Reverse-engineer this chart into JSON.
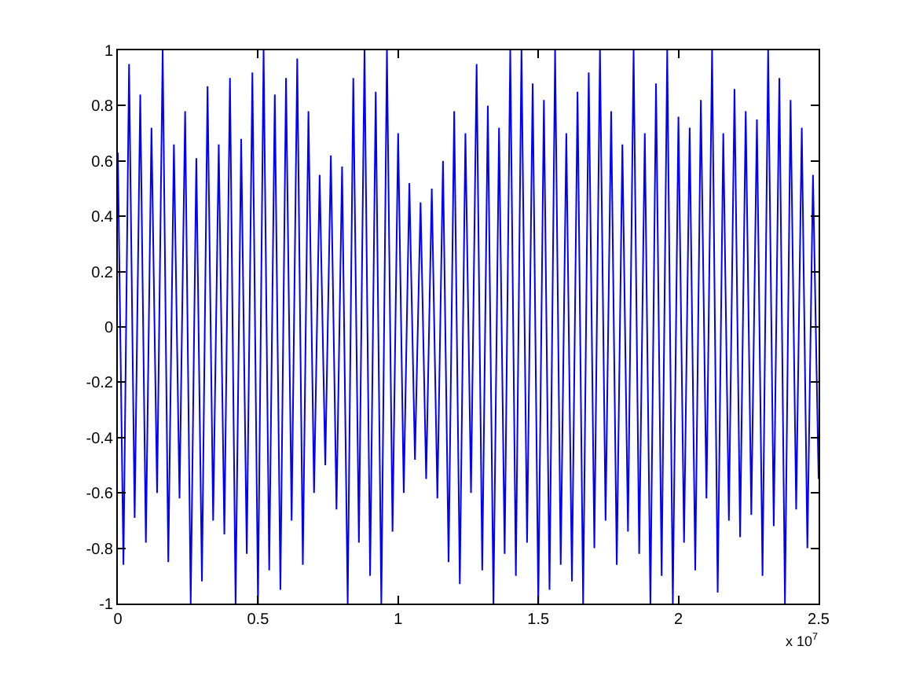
{
  "chart_data": {
    "type": "line",
    "color": "#0000ff",
    "x": [
      0,
      0.02,
      0.04,
      0.06,
      0.08,
      0.1,
      0.12,
      0.14,
      0.16,
      0.18,
      0.2,
      0.22,
      0.24,
      0.26,
      0.28,
      0.3,
      0.32,
      0.34,
      0.36,
      0.38,
      0.4,
      0.42,
      0.44,
      0.46,
      0.48,
      0.5,
      0.52,
      0.54,
      0.56,
      0.58,
      0.6,
      0.62,
      0.64,
      0.66,
      0.68,
      0.7,
      0.72,
      0.74,
      0.76,
      0.78,
      0.8,
      0.82,
      0.84,
      0.86,
      0.88,
      0.9,
      0.92,
      0.94,
      0.96,
      0.98,
      1,
      1.02,
      1.04,
      1.06,
      1.08,
      1.1,
      1.12,
      1.14,
      1.16,
      1.18,
      1.2,
      1.22,
      1.24,
      1.26,
      1.28,
      1.3,
      1.32,
      1.34,
      1.36,
      1.38,
      1.4,
      1.42,
      1.44,
      1.46,
      1.48,
      1.5,
      1.52,
      1.54,
      1.56,
      1.58,
      1.6,
      1.62,
      1.64,
      1.66,
      1.68,
      1.7,
      1.72,
      1.74,
      1.76,
      1.78,
      1.8,
      1.82,
      1.84,
      1.86,
      1.88,
      1.9,
      1.92,
      1.94,
      1.96,
      1.98,
      2,
      2.02,
      2.04,
      2.06,
      2.08,
      2.1,
      2.12,
      2.14,
      2.16,
      2.18,
      2.2,
      2.22,
      2.24,
      2.26,
      2.28,
      2.3,
      2.32,
      2.34,
      2.36,
      2.38,
      2.4,
      2.42,
      2.44,
      2.46,
      2.48,
      2.5
    ],
    "values": [
      0.63,
      -0.86,
      0.95,
      -0.69,
      0.84,
      -0.78,
      0.72,
      -0.6,
      1,
      -0.85,
      0.66,
      -0.62,
      0.78,
      -1,
      0.61,
      -0.92,
      0.87,
      -0.7,
      0.66,
      -0.75,
      0.9,
      -1,
      0.68,
      -0.82,
      0.92,
      -1,
      1,
      -0.88,
      0.84,
      -0.95,
      0.9,
      -0.7,
      0.97,
      -0.86,
      0.78,
      -0.6,
      0.55,
      -0.5,
      0.62,
      -0.66,
      0.58,
      -1,
      0.9,
      -0.78,
      1,
      -0.9,
      0.85,
      -1,
      1,
      -0.74,
      0.7,
      -0.6,
      0.52,
      -0.48,
      0.45,
      -0.55,
      0.5,
      -0.62,
      0.6,
      -0.85,
      0.78,
      -0.93,
      0.7,
      -0.6,
      0.95,
      -0.88,
      0.8,
      -1,
      0.72,
      -0.82,
      1,
      -0.9,
      1,
      -0.78,
      0.88,
      -1,
      0.82,
      -0.95,
      1,
      -0.86,
      0.7,
      -0.92,
      0.85,
      -1,
      0.92,
      -0.8,
      1,
      -0.7,
      0.78,
      -0.86,
      0.66,
      -0.74,
      1,
      -0.82,
      0.7,
      -1,
      0.88,
      -0.9,
      1,
      -1,
      0.76,
      -0.78,
      0.72,
      -0.88,
      0.82,
      -0.62,
      1,
      -0.96,
      0.7,
      -0.7,
      0.86,
      -0.76,
      0.78,
      -0.68,
      0.75,
      -0.9,
      1,
      -0.72,
      0.9,
      -1,
      0.82,
      -0.66,
      0.72,
      -0.8,
      0.55,
      -0.55
    ],
    "xlim": [
      0,
      2.5
    ],
    "ylim": [
      -1,
      1
    ],
    "xticks": [
      0,
      0.5,
      1,
      1.5,
      2,
      2.5
    ],
    "yticks": [
      -1,
      -0.8,
      -0.6,
      -0.4,
      -0.2,
      0,
      0.2,
      0.4,
      0.6,
      0.8,
      1
    ],
    "annotations": [
      "x 10$^{7}$"
    ]
  }
}
